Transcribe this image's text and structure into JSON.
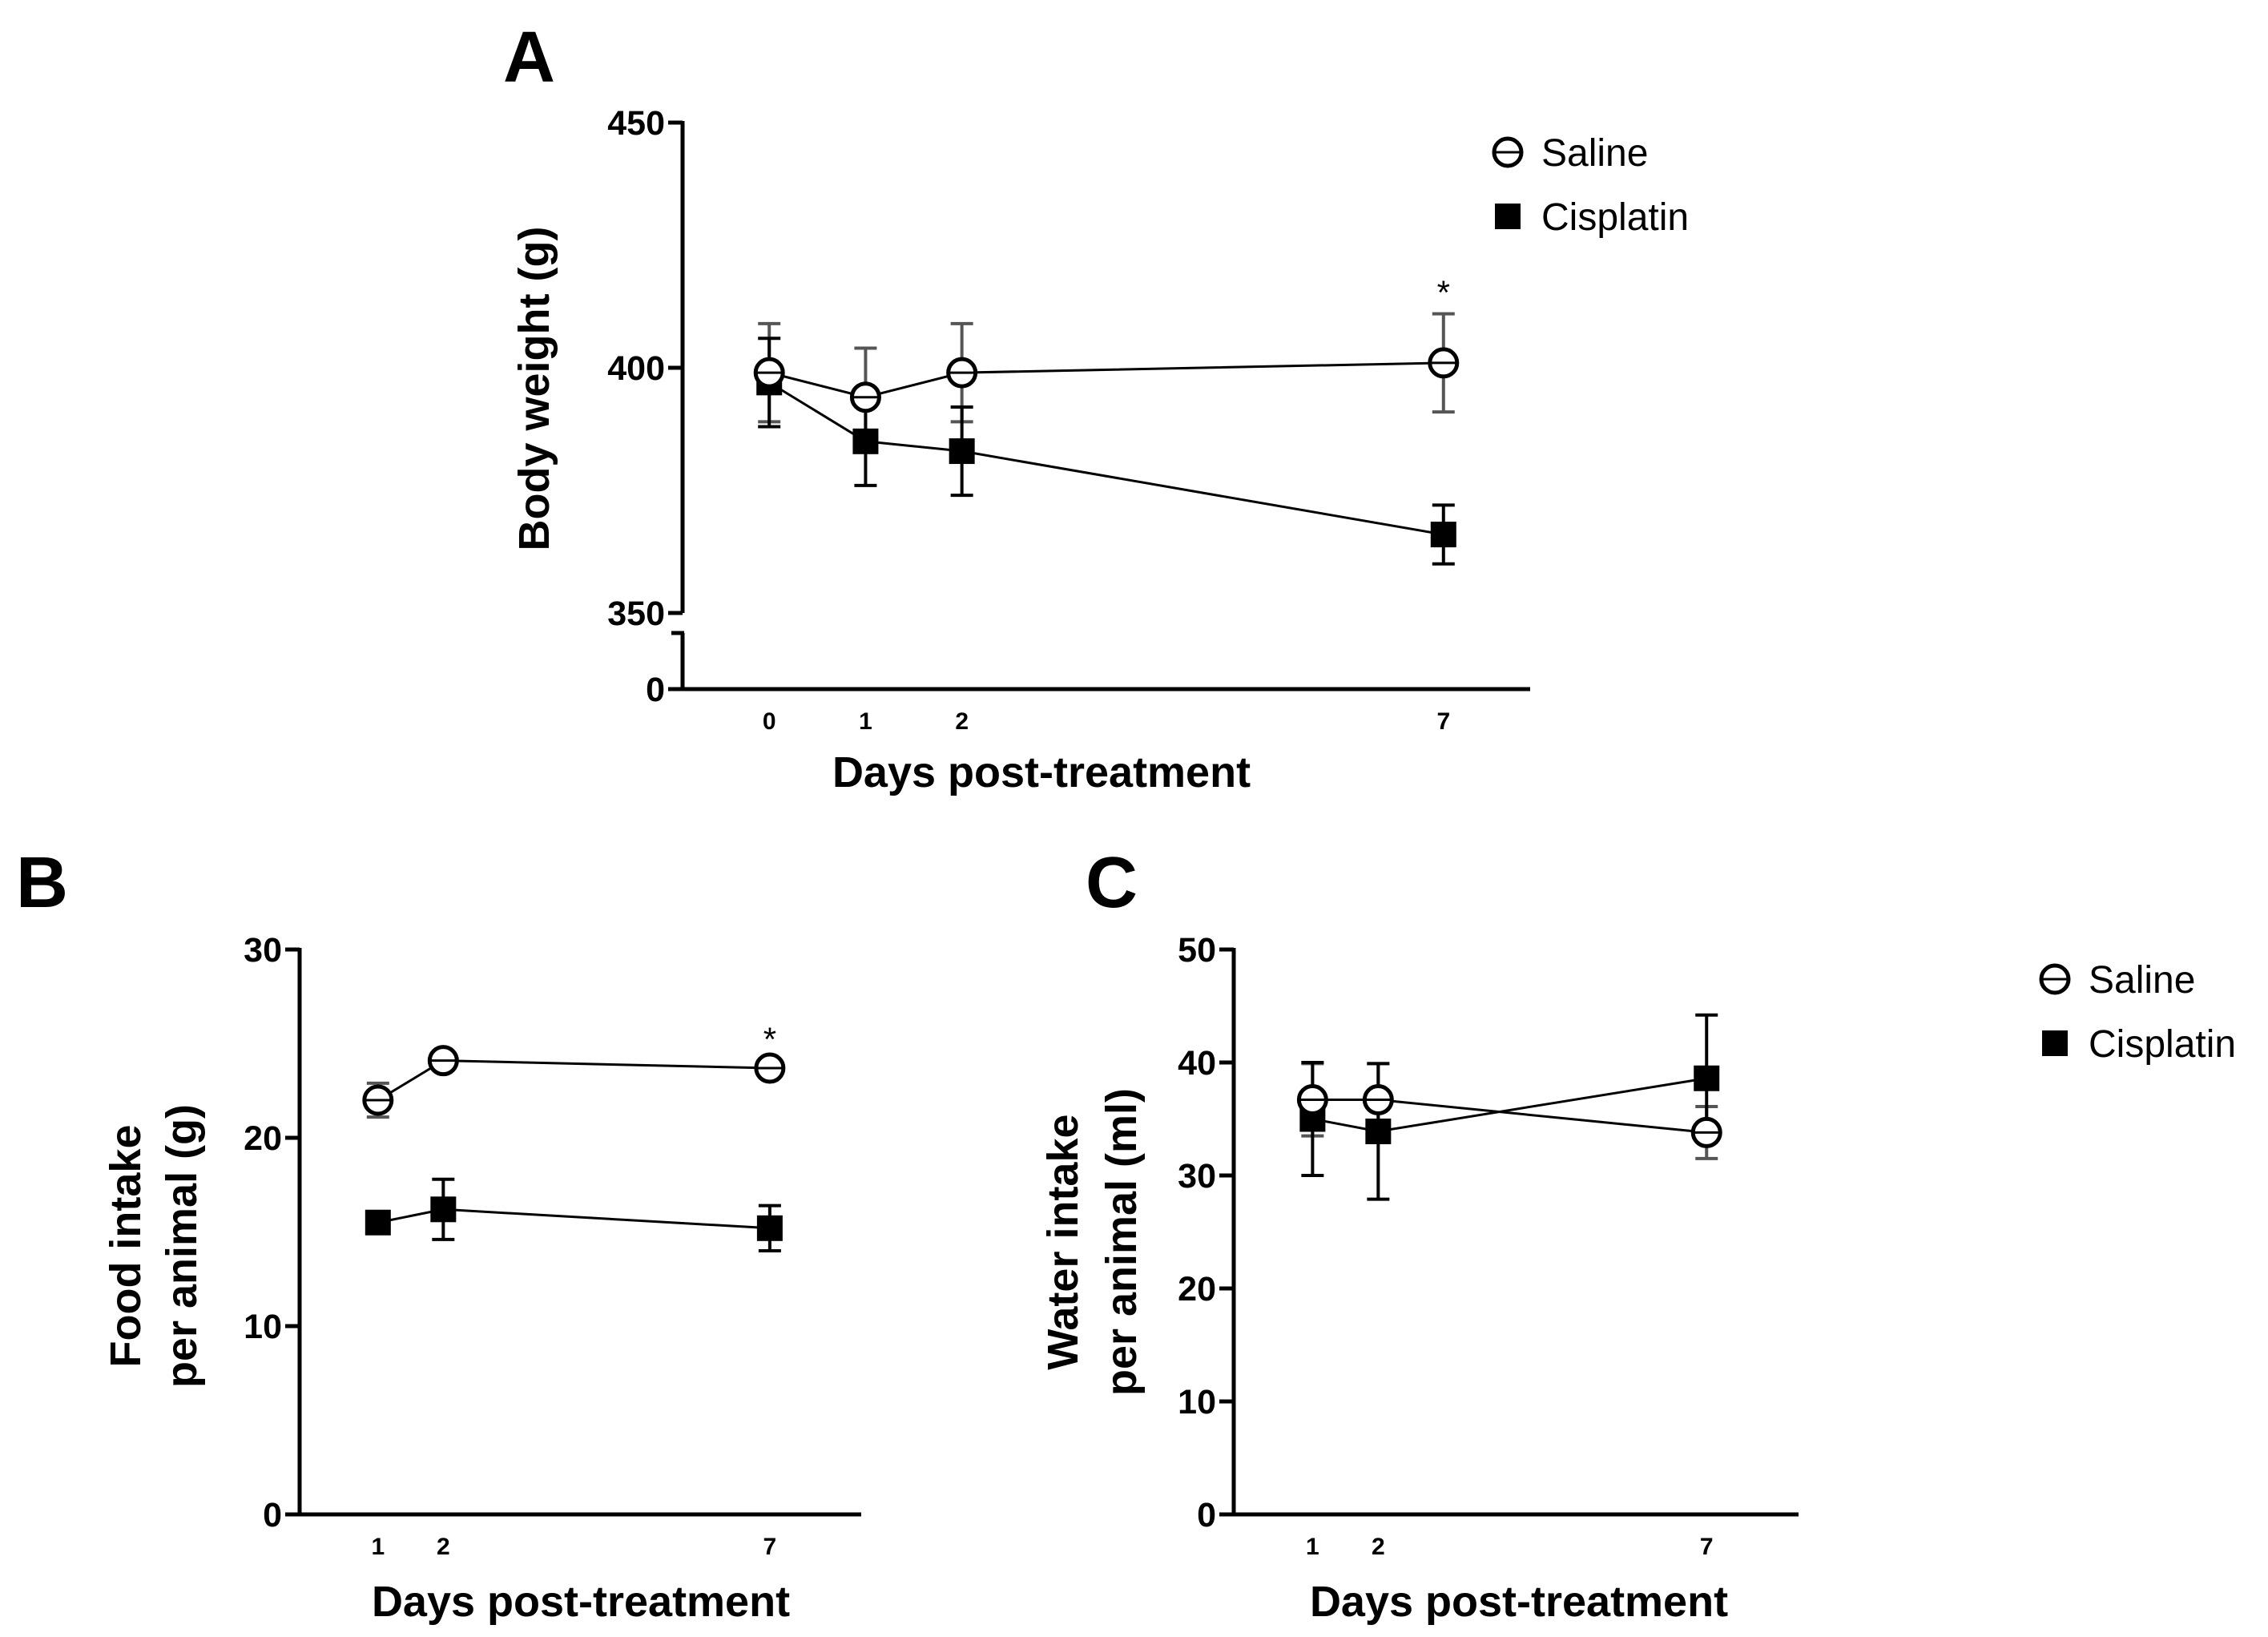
{
  "series_styles": {
    "Saline": {
      "marker": "open-circle",
      "color": "#000000"
    },
    "Cisplatin": {
      "marker": "filled-square",
      "color": "#000000"
    }
  },
  "chart_data": [
    {
      "panel": "A",
      "type": "line",
      "xlabel": "Days post-treatment",
      "ylabel": "Body weight (g)",
      "x": [
        0,
        1,
        2,
        7
      ],
      "x_tick_labels": [
        "0",
        "1",
        "2",
        "7"
      ],
      "xlim": [
        -0.9,
        7.9
      ],
      "ylim": [
        350,
        450
      ],
      "y_ticks": [
        350,
        400,
        450
      ],
      "y_break": true,
      "y_zero_label": "0",
      "series": [
        {
          "name": "Saline",
          "values": [
            399,
            394,
            399,
            401
          ],
          "errors": [
            10,
            10,
            10,
            10
          ]
        },
        {
          "name": "Cisplatin",
          "values": [
            397,
            385,
            383,
            366
          ],
          "errors": [
            9,
            9,
            9,
            6
          ]
        }
      ],
      "annotations": [
        {
          "x": 7,
          "text": "*"
        }
      ],
      "legend": {
        "entries": [
          "Saline",
          "Cisplatin"
        ],
        "position": "top-right"
      }
    },
    {
      "panel": "B",
      "type": "line",
      "xlabel": "Days post-treatment",
      "ylabel": [
        "Food intake",
        "per animal (g)"
      ],
      "x": [
        1,
        2,
        7
      ],
      "x_tick_labels": [
        "1",
        "2",
        "7"
      ],
      "xlim": [
        -0.2,
        8.4
      ],
      "ylim": [
        0,
        30
      ],
      "y_ticks": [
        0,
        10,
        20,
        30
      ],
      "series": [
        {
          "name": "Saline",
          "values": [
            22,
            24.1,
            23.7
          ],
          "errors": [
            0.9,
            0.3,
            0.4
          ]
        },
        {
          "name": "Cisplatin",
          "values": [
            15.5,
            16.2,
            15.2
          ],
          "errors": [
            0.4,
            1.6,
            1.2
          ]
        }
      ],
      "annotations": [
        {
          "x": 7,
          "text": "*"
        }
      ]
    },
    {
      "panel": "C",
      "type": "line",
      "xlabel": "Days post-treatment",
      "ylabel": [
        "Water intake",
        "per animal (ml)"
      ],
      "x": [
        1,
        2,
        7
      ],
      "x_tick_labels": [
        "1",
        "2",
        "7"
      ],
      "xlim": [
        -0.2,
        8.4
      ],
      "ylim": [
        0,
        50
      ],
      "y_ticks": [
        0,
        10,
        20,
        30,
        40,
        50
      ],
      "series": [
        {
          "name": "Saline",
          "values": [
            36.7,
            36.7,
            33.8
          ],
          "errors": [
            3.2,
            3.2,
            2.3
          ]
        },
        {
          "name": "Cisplatin",
          "values": [
            35,
            33.9,
            38.6
          ],
          "errors": [
            5,
            6,
            5.6
          ]
        }
      ],
      "legend": {
        "entries": [
          "Saline",
          "Cisplatin"
        ],
        "position": "right"
      }
    }
  ]
}
